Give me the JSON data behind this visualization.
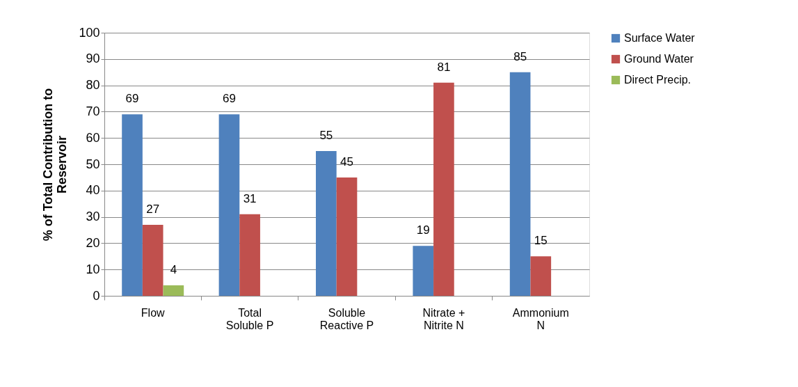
{
  "chart_data": {
    "type": "bar",
    "ylabel": "% of Total Contribution to\nReservoir",
    "categories": [
      "Flow",
      "Total\nSoluble P",
      "Soluble\nReactive P",
      "Nitrate +\nNitrite N",
      "Ammonium\nN"
    ],
    "series": [
      {
        "name": "Surface Water",
        "color": "#4f81bd",
        "values": [
          69,
          69,
          55,
          19,
          85
        ]
      },
      {
        "name": "Ground Water",
        "color": "#c0504d",
        "values": [
          27,
          31,
          45,
          81,
          15
        ]
      },
      {
        "name": "Direct Precip.",
        "color": "#9bbb59",
        "values": [
          4,
          null,
          null,
          null,
          null
        ]
      }
    ],
    "ylim": [
      0,
      100
    ],
    "yticks": [
      0,
      10,
      20,
      30,
      40,
      50,
      60,
      70,
      80,
      90,
      100
    ],
    "grid": "y",
    "legend": "right",
    "data_labels": true
  }
}
